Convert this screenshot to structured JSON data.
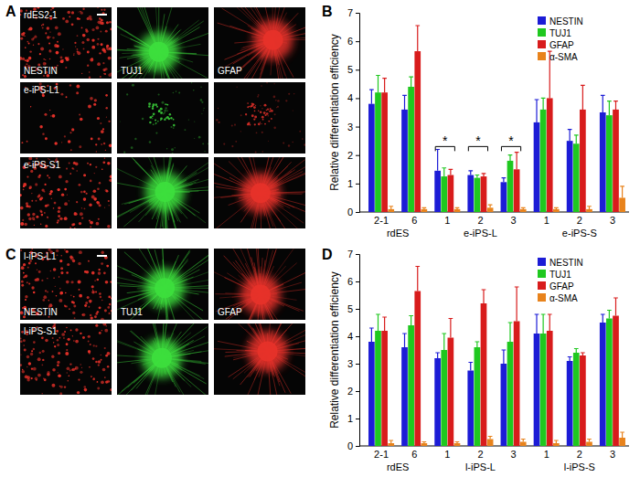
{
  "chart_data": [
    {
      "panel_label": "B",
      "type": "bar",
      "ylabel": "Relative differentiation efficiency",
      "categories": [
        "2-1",
        "6",
        "1",
        "2",
        "3",
        "1",
        "2",
        "3"
      ],
      "groups": [
        {
          "label": "rdES",
          "size": 2
        },
        {
          "label": "e-iPS-L",
          "size": 3
        },
        {
          "label": "e-iPS-S",
          "size": 3
        }
      ],
      "ylim": [
        0,
        7
      ],
      "yticks": [
        0,
        1,
        2,
        3,
        4,
        5,
        6,
        7
      ],
      "legend": "top-right",
      "series": [
        {
          "name": "NESTIN",
          "color": "#1c1cd6",
          "values": [
            3.8,
            3.6,
            1.45,
            1.3,
            1.05,
            3.15,
            2.5,
            3.5
          ],
          "errors": [
            0.5,
            0.5,
            0.75,
            0.15,
            0.15,
            0.8,
            0.4,
            0.6
          ]
        },
        {
          "name": "TUJ1",
          "color": "#1fc81f",
          "values": [
            4.2,
            4.4,
            1.25,
            1.2,
            1.8,
            3.6,
            2.4,
            3.4
          ],
          "errors": [
            0.6,
            0.35,
            0.3,
            0.1,
            0.2,
            0.4,
            0.3,
            0.5
          ]
        },
        {
          "name": "GFAP",
          "color": "#d81c1c",
          "values": [
            4.2,
            5.65,
            1.3,
            1.25,
            1.5,
            4.0,
            3.6,
            3.6
          ],
          "errors": [
            0.5,
            0.9,
            0.2,
            0.1,
            0.6,
            1.65,
            0.85,
            0.3
          ]
        },
        {
          "name": "α-SMA",
          "color": "#e8831c",
          "values": [
            0.1,
            0.1,
            0.1,
            0.15,
            0.1,
            0.1,
            0.1,
            0.5
          ],
          "errors": [
            0.1,
            0.05,
            0.05,
            0.1,
            0.05,
            0.05,
            0.1,
            0.4
          ]
        }
      ],
      "significance": [
        {
          "category": 2,
          "y": 2.3,
          "label": "*"
        },
        {
          "category": 3,
          "y": 2.3,
          "label": "*"
        },
        {
          "category": 4,
          "y": 2.3,
          "label": "*"
        }
      ]
    },
    {
      "panel_label": "D",
      "type": "bar",
      "ylabel": "Relative differentiation efficiency",
      "categories": [
        "2-1",
        "6",
        "1",
        "2",
        "3",
        "1",
        "2",
        "3"
      ],
      "groups": [
        {
          "label": "rdES",
          "size": 2
        },
        {
          "label": "l-iPS-L",
          "size": 3
        },
        {
          "label": "l-iPS-S",
          "size": 3
        }
      ],
      "ylim": [
        0,
        7
      ],
      "yticks": [
        0,
        1,
        2,
        3,
        4,
        5,
        6,
        7
      ],
      "legend": "top-right",
      "series": [
        {
          "name": "NESTIN",
          "color": "#1c1cd6",
          "values": [
            3.8,
            3.6,
            3.2,
            2.75,
            3.0,
            4.1,
            3.1,
            4.5
          ],
          "errors": [
            0.5,
            0.5,
            0.2,
            0.3,
            0.5,
            0.7,
            0.15,
            0.3
          ]
        },
        {
          "name": "TUJ1",
          "color": "#1fc81f",
          "values": [
            4.2,
            4.4,
            3.5,
            3.6,
            3.8,
            4.1,
            3.4,
            4.65
          ],
          "errors": [
            0.6,
            0.35,
            0.6,
            0.2,
            0.7,
            0.7,
            0.15,
            0.3
          ]
        },
        {
          "name": "GFAP",
          "color": "#d81c1c",
          "values": [
            4.2,
            5.65,
            3.95,
            5.2,
            4.55,
            4.2,
            3.3,
            4.75
          ],
          "errors": [
            0.5,
            0.9,
            0.7,
            0.5,
            1.25,
            0.6,
            0.1,
            0.65
          ]
        },
        {
          "name": "α-SMA",
          "color": "#e8831c",
          "values": [
            0.1,
            0.1,
            0.1,
            0.25,
            0.15,
            0.1,
            0.15,
            0.3
          ],
          "errors": [
            0.1,
            0.05,
            0.05,
            0.1,
            0.1,
            0.1,
            0.1,
            0.2
          ]
        }
      ],
      "significance": []
    }
  ],
  "image_panels": [
    {
      "panel_label": "A",
      "stains": [
        {
          "name": "NESTIN",
          "color": "#e8322a"
        },
        {
          "name": "TUJ1",
          "color": "#3ee03e"
        },
        {
          "name": "GFAP",
          "color": "#e8322a"
        }
      ],
      "rows": [
        "rdES2-1",
        "e-iPS-L1",
        "e-iPS-S1"
      ]
    },
    {
      "panel_label": "C",
      "stains": [
        {
          "name": "NESTIN",
          "color": "#e8322a"
        },
        {
          "name": "TUJ1",
          "color": "#3ee03e"
        },
        {
          "name": "GFAP",
          "color": "#e8322a"
        }
      ],
      "rows": [
        "l-iPS-L1",
        "l-iPS-S1"
      ]
    }
  ]
}
